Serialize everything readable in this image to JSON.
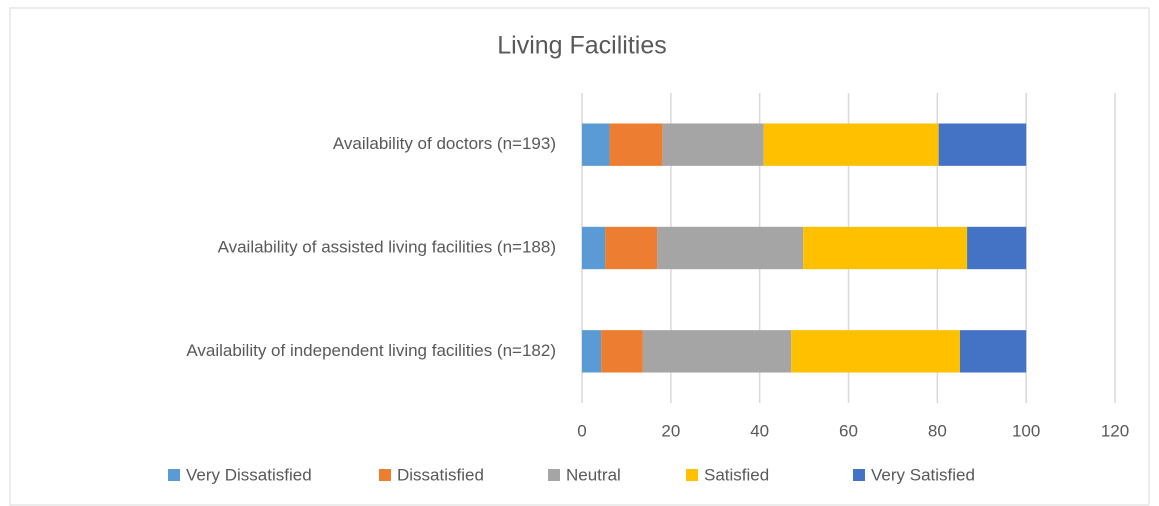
{
  "chart_data": {
    "type": "stacked-bar-horizontal",
    "title": "Living Facilities",
    "categories": [
      "Availability of doctors (n=193)",
      "Availability of assisted living facilities (n=188)",
      "Availability of independent living facilities (n=182)"
    ],
    "series": [
      {
        "name": "Very Dissatisfied",
        "color": "#5b9bd5",
        "values": [
          6.2,
          5.2,
          4.3
        ]
      },
      {
        "name": "Dissatisfied",
        "color": "#ed7d31",
        "values": [
          11.9,
          11.7,
          9.4
        ]
      },
      {
        "name": "Neutral",
        "color": "#a5a5a5",
        "values": [
          22.8,
          32.9,
          33.4
        ]
      },
      {
        "name": "Satisfied",
        "color": "#ffc000",
        "values": [
          39.4,
          36.9,
          38.0
        ]
      },
      {
        "name": "Very Satisfied",
        "color": "#4472c4",
        "values": [
          19.7,
          13.3,
          14.9
        ]
      }
    ],
    "xlim": [
      0,
      120
    ],
    "xticks": [
      0,
      20,
      40,
      60,
      80,
      100,
      120
    ],
    "grid": true,
    "legend": "bottom"
  }
}
